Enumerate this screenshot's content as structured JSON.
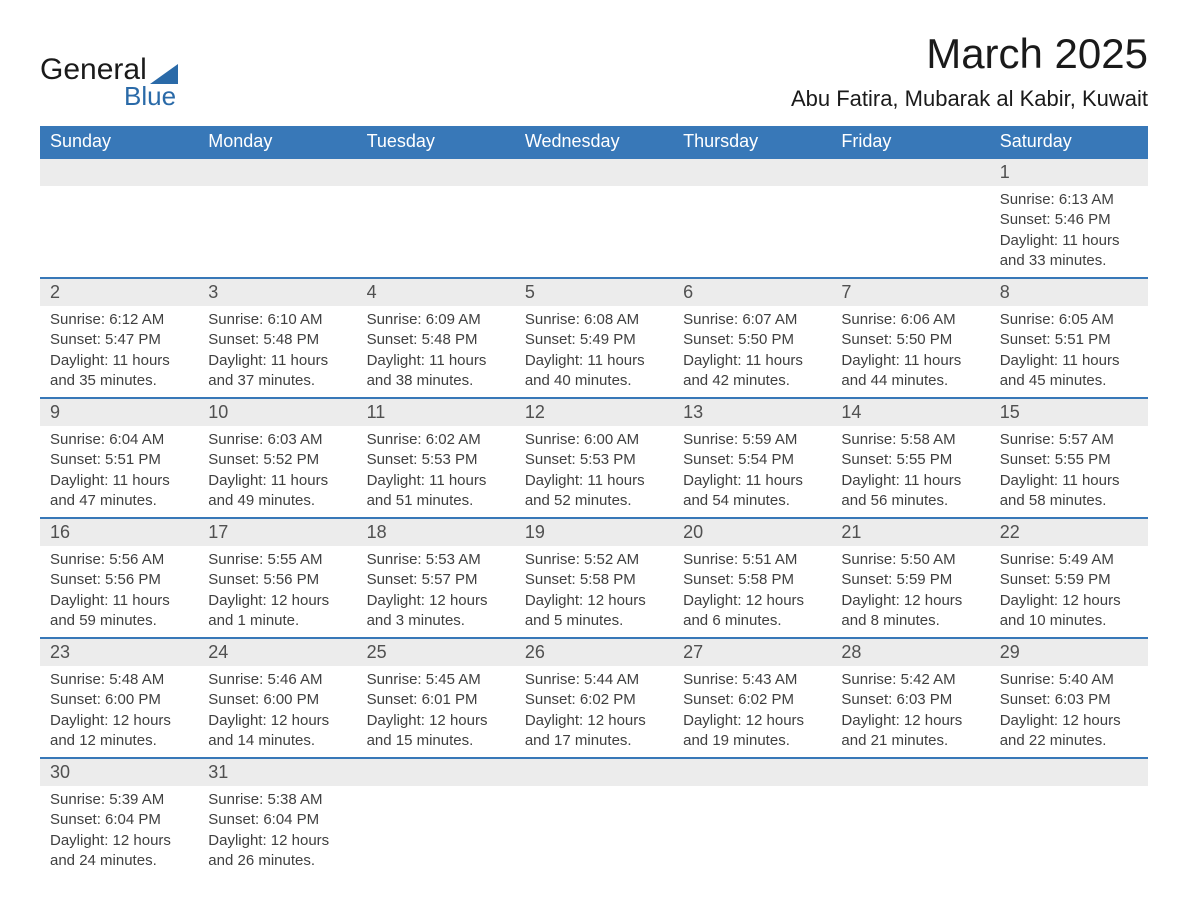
{
  "logo": {
    "word1": "General",
    "word2": "Blue",
    "text_color": "#1a1a1a",
    "accent_color": "#2a6aa8"
  },
  "title": "March 2025",
  "location": "Abu Fatira, Mubarak al Kabir, Kuwait",
  "colors": {
    "header_bg": "#3878b8",
    "header_text": "#ffffff",
    "daynum_bg": "#ececec",
    "row_border": "#3878b8",
    "body_text": "#404040",
    "page_bg": "#ffffff"
  },
  "day_names": [
    "Sunday",
    "Monday",
    "Tuesday",
    "Wednesday",
    "Thursday",
    "Friday",
    "Saturday"
  ],
  "weeks": [
    [
      null,
      null,
      null,
      null,
      null,
      null,
      {
        "n": "1",
        "sr": "Sunrise: 6:13 AM",
        "ss": "Sunset: 5:46 PM",
        "d1": "Daylight: 11 hours",
        "d2": "and 33 minutes."
      }
    ],
    [
      {
        "n": "2",
        "sr": "Sunrise: 6:12 AM",
        "ss": "Sunset: 5:47 PM",
        "d1": "Daylight: 11 hours",
        "d2": "and 35 minutes."
      },
      {
        "n": "3",
        "sr": "Sunrise: 6:10 AM",
        "ss": "Sunset: 5:48 PM",
        "d1": "Daylight: 11 hours",
        "d2": "and 37 minutes."
      },
      {
        "n": "4",
        "sr": "Sunrise: 6:09 AM",
        "ss": "Sunset: 5:48 PM",
        "d1": "Daylight: 11 hours",
        "d2": "and 38 minutes."
      },
      {
        "n": "5",
        "sr": "Sunrise: 6:08 AM",
        "ss": "Sunset: 5:49 PM",
        "d1": "Daylight: 11 hours",
        "d2": "and 40 minutes."
      },
      {
        "n": "6",
        "sr": "Sunrise: 6:07 AM",
        "ss": "Sunset: 5:50 PM",
        "d1": "Daylight: 11 hours",
        "d2": "and 42 minutes."
      },
      {
        "n": "7",
        "sr": "Sunrise: 6:06 AM",
        "ss": "Sunset: 5:50 PM",
        "d1": "Daylight: 11 hours",
        "d2": "and 44 minutes."
      },
      {
        "n": "8",
        "sr": "Sunrise: 6:05 AM",
        "ss": "Sunset: 5:51 PM",
        "d1": "Daylight: 11 hours",
        "d2": "and 45 minutes."
      }
    ],
    [
      {
        "n": "9",
        "sr": "Sunrise: 6:04 AM",
        "ss": "Sunset: 5:51 PM",
        "d1": "Daylight: 11 hours",
        "d2": "and 47 minutes."
      },
      {
        "n": "10",
        "sr": "Sunrise: 6:03 AM",
        "ss": "Sunset: 5:52 PM",
        "d1": "Daylight: 11 hours",
        "d2": "and 49 minutes."
      },
      {
        "n": "11",
        "sr": "Sunrise: 6:02 AM",
        "ss": "Sunset: 5:53 PM",
        "d1": "Daylight: 11 hours",
        "d2": "and 51 minutes."
      },
      {
        "n": "12",
        "sr": "Sunrise: 6:00 AM",
        "ss": "Sunset: 5:53 PM",
        "d1": "Daylight: 11 hours",
        "d2": "and 52 minutes."
      },
      {
        "n": "13",
        "sr": "Sunrise: 5:59 AM",
        "ss": "Sunset: 5:54 PM",
        "d1": "Daylight: 11 hours",
        "d2": "and 54 minutes."
      },
      {
        "n": "14",
        "sr": "Sunrise: 5:58 AM",
        "ss": "Sunset: 5:55 PM",
        "d1": "Daylight: 11 hours",
        "d2": "and 56 minutes."
      },
      {
        "n": "15",
        "sr": "Sunrise: 5:57 AM",
        "ss": "Sunset: 5:55 PM",
        "d1": "Daylight: 11 hours",
        "d2": "and 58 minutes."
      }
    ],
    [
      {
        "n": "16",
        "sr": "Sunrise: 5:56 AM",
        "ss": "Sunset: 5:56 PM",
        "d1": "Daylight: 11 hours",
        "d2": "and 59 minutes."
      },
      {
        "n": "17",
        "sr": "Sunrise: 5:55 AM",
        "ss": "Sunset: 5:56 PM",
        "d1": "Daylight: 12 hours",
        "d2": "and 1 minute."
      },
      {
        "n": "18",
        "sr": "Sunrise: 5:53 AM",
        "ss": "Sunset: 5:57 PM",
        "d1": "Daylight: 12 hours",
        "d2": "and 3 minutes."
      },
      {
        "n": "19",
        "sr": "Sunrise: 5:52 AM",
        "ss": "Sunset: 5:58 PM",
        "d1": "Daylight: 12 hours",
        "d2": "and 5 minutes."
      },
      {
        "n": "20",
        "sr": "Sunrise: 5:51 AM",
        "ss": "Sunset: 5:58 PM",
        "d1": "Daylight: 12 hours",
        "d2": "and 6 minutes."
      },
      {
        "n": "21",
        "sr": "Sunrise: 5:50 AM",
        "ss": "Sunset: 5:59 PM",
        "d1": "Daylight: 12 hours",
        "d2": "and 8 minutes."
      },
      {
        "n": "22",
        "sr": "Sunrise: 5:49 AM",
        "ss": "Sunset: 5:59 PM",
        "d1": "Daylight: 12 hours",
        "d2": "and 10 minutes."
      }
    ],
    [
      {
        "n": "23",
        "sr": "Sunrise: 5:48 AM",
        "ss": "Sunset: 6:00 PM",
        "d1": "Daylight: 12 hours",
        "d2": "and 12 minutes."
      },
      {
        "n": "24",
        "sr": "Sunrise: 5:46 AM",
        "ss": "Sunset: 6:00 PM",
        "d1": "Daylight: 12 hours",
        "d2": "and 14 minutes."
      },
      {
        "n": "25",
        "sr": "Sunrise: 5:45 AM",
        "ss": "Sunset: 6:01 PM",
        "d1": "Daylight: 12 hours",
        "d2": "and 15 minutes."
      },
      {
        "n": "26",
        "sr": "Sunrise: 5:44 AM",
        "ss": "Sunset: 6:02 PM",
        "d1": "Daylight: 12 hours",
        "d2": "and 17 minutes."
      },
      {
        "n": "27",
        "sr": "Sunrise: 5:43 AM",
        "ss": "Sunset: 6:02 PM",
        "d1": "Daylight: 12 hours",
        "d2": "and 19 minutes."
      },
      {
        "n": "28",
        "sr": "Sunrise: 5:42 AM",
        "ss": "Sunset: 6:03 PM",
        "d1": "Daylight: 12 hours",
        "d2": "and 21 minutes."
      },
      {
        "n": "29",
        "sr": "Sunrise: 5:40 AM",
        "ss": "Sunset: 6:03 PM",
        "d1": "Daylight: 12 hours",
        "d2": "and 22 minutes."
      }
    ],
    [
      {
        "n": "30",
        "sr": "Sunrise: 5:39 AM",
        "ss": "Sunset: 6:04 PM",
        "d1": "Daylight: 12 hours",
        "d2": "and 24 minutes."
      },
      {
        "n": "31",
        "sr": "Sunrise: 5:38 AM",
        "ss": "Sunset: 6:04 PM",
        "d1": "Daylight: 12 hours",
        "d2": "and 26 minutes."
      },
      null,
      null,
      null,
      null,
      null
    ]
  ]
}
